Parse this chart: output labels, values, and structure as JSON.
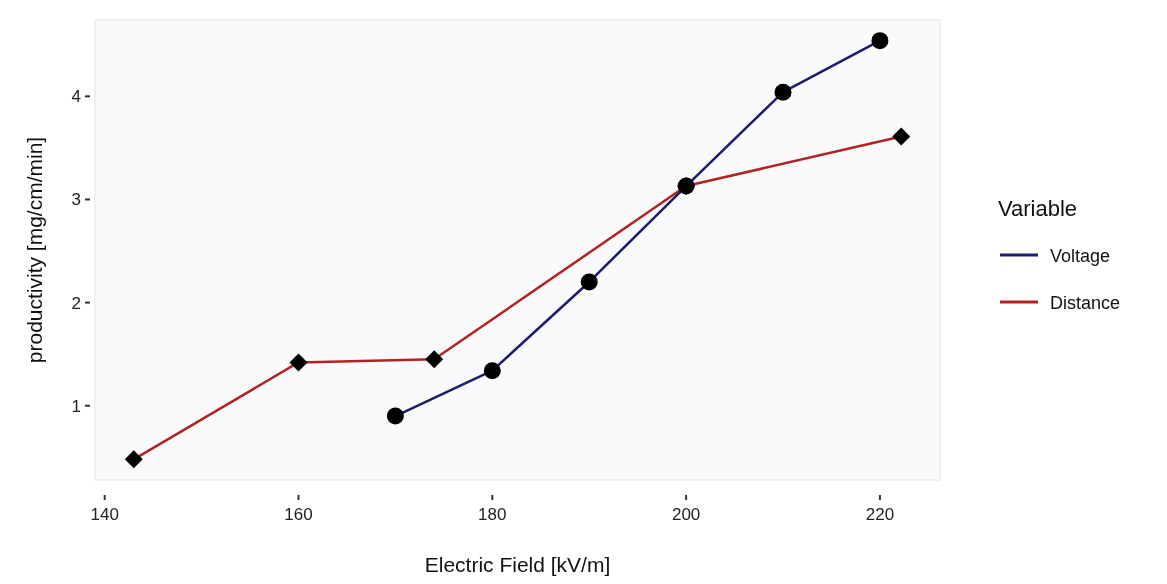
{
  "chart_data": {
    "type": "line",
    "xlabel": "Electric Field [kV/m]",
    "ylabel": "productivity [mg/cm/min]",
    "legend_title": "Variable",
    "legend": "right",
    "grid": false,
    "line_style": "solid",
    "xlim": [
      139,
      226.2
    ],
    "xticks": [
      140,
      160,
      180,
      200,
      220
    ],
    "ylim": [
      0.28,
      4.74
    ],
    "yticks": [
      1,
      2,
      3,
      4
    ],
    "series": [
      {
        "name": "Voltage",
        "color": "#1c1c6e",
        "marker": "circle",
        "x": [
          170,
          180,
          190,
          200,
          210,
          220
        ],
        "values": [
          0.9,
          1.34,
          2.2,
          3.13,
          4.04,
          4.54
        ]
      },
      {
        "name": "Distance",
        "color": "#b22222",
        "marker": "diamond",
        "x": [
          143,
          160,
          174,
          200,
          222.2
        ],
        "values": [
          0.48,
          1.42,
          1.45,
          3.13,
          3.61
        ]
      }
    ]
  }
}
